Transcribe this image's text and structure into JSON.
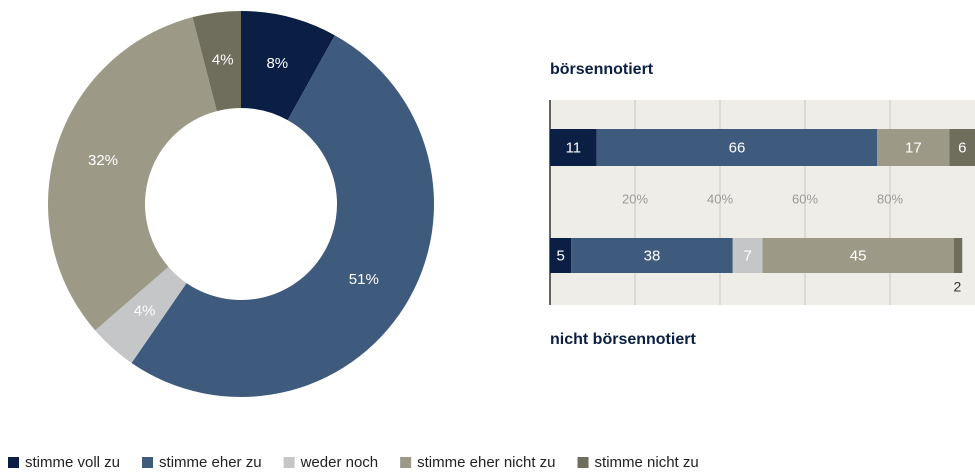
{
  "chart_data": [
    {
      "type": "pie",
      "categories": [
        "stimme voll zu",
        "stimme eher zu",
        "weder noch",
        "stimme eher nicht zu",
        "stimme nicht zu"
      ],
      "values": [
        8,
        51,
        4,
        32,
        4
      ],
      "value_labels": [
        "8%",
        "51%",
        "4%",
        "32%",
        "4%"
      ],
      "colors": [
        "#0b1f45",
        "#3e5a7d",
        "#c5c6c8",
        "#9c9a87",
        "#6f6d5c"
      ]
    },
    {
      "type": "stacked-bar",
      "categories": [
        "börsennotiert",
        "nicht börsennotiert"
      ],
      "series": [
        {
          "color": "#0b1f45",
          "values": [
            11,
            5
          ]
        },
        {
          "color": "#3e5a7d",
          "values": [
            66,
            38
          ]
        },
        {
          "color": "#c5c6c8",
          "values": [
            null,
            7
          ]
        },
        {
          "color": "#9c9a87",
          "values": [
            17,
            45
          ]
        },
        {
          "color": "#6f6d5c",
          "values": [
            6,
            2
          ]
        }
      ],
      "xlim": [
        0,
        100
      ],
      "xticks": [
        {
          "value": 20,
          "label": "20%"
        },
        {
          "value": 40,
          "label": "40%"
        },
        {
          "value": 60,
          "label": "60%"
        },
        {
          "value": 80,
          "label": "80%"
        }
      ],
      "grid": true
    }
  ]
}
